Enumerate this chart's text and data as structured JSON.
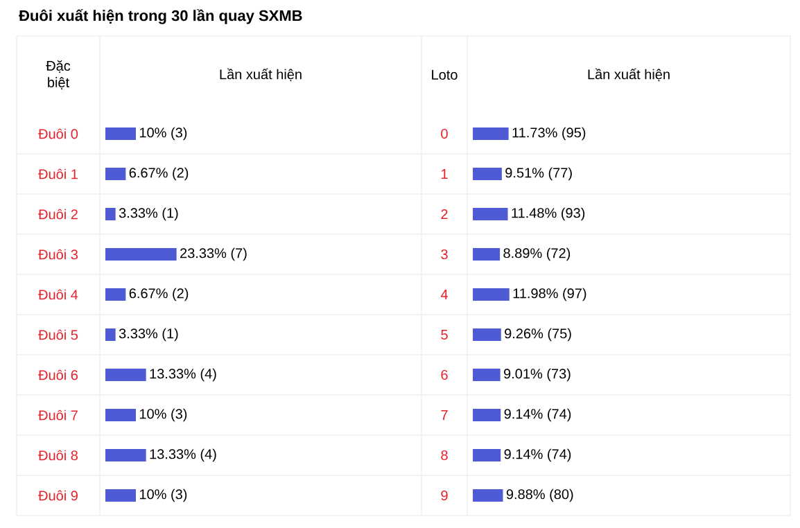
{
  "chart_data": [
    {
      "type": "bar",
      "orientation": "horizontal",
      "title": "Đuôi xuất hiện trong 30 lần quay SXMB",
      "ylabel": "Đặc biệt",
      "xlabel": "Lần xuất hiện",
      "color": "#4f5bd5",
      "categories": [
        "Đuôi 0",
        "Đuôi 1",
        "Đuôi 2",
        "Đuôi 3",
        "Đuôi 4",
        "Đuôi 5",
        "Đuôi 6",
        "Đuôi 7",
        "Đuôi 8",
        "Đuôi 9"
      ],
      "values": [
        10,
        6.67,
        3.33,
        23.33,
        6.67,
        3.33,
        13.33,
        10,
        13.33,
        10
      ],
      "value_labels": [
        "10% (3)",
        "6.67% (2)",
        "3.33% (1)",
        "23.33% (7)",
        "6.67% (2)",
        "3.33% (1)",
        "13.33% (4)",
        "10% (3)",
        "13.33% (4)",
        "10% (3)"
      ]
    },
    {
      "type": "bar",
      "orientation": "horizontal",
      "ylabel": "Loto",
      "xlabel": "Lần xuất hiện",
      "color": "#4f5bd5",
      "categories": [
        "0",
        "1",
        "2",
        "3",
        "4",
        "5",
        "6",
        "7",
        "8",
        "9"
      ],
      "values": [
        11.73,
        9.51,
        11.48,
        8.89,
        11.98,
        9.26,
        9.01,
        9.14,
        9.14,
        9.88
      ],
      "value_labels": [
        "11.73% (95)",
        "9.51% (77)",
        "11.48% (93)",
        "8.89% (72)",
        "11.98% (97)",
        "9.26% (75)",
        "9.01% (73)",
        "9.14% (74)",
        "9.14% (74)",
        "9.88% (80)"
      ]
    }
  ]
}
